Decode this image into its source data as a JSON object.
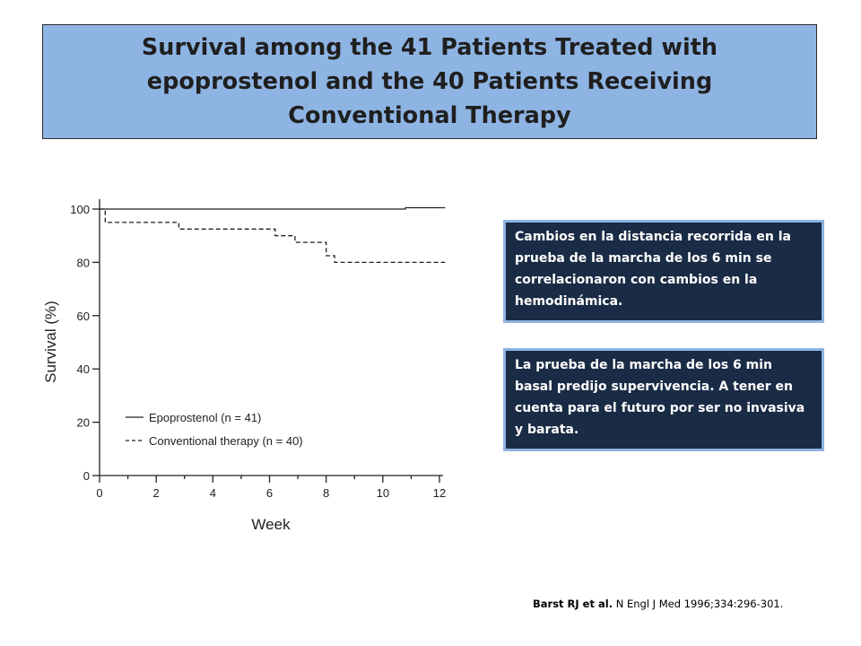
{
  "title": "Survival among the 41 Patients Treated with epoprostenol and the 40 Patients Receiving Conventional Therapy",
  "notes": [
    "Cambios en la distancia recorrida en la prueba de la marcha de los 6 min se correlacionaron con cambios en la hemodinámica.",
    "La prueba de la marcha de los 6 min basal predijo supervivencia. A tener en cuenta para el futuro por ser no invasiva y barata."
  ],
  "citation": {
    "authors": "Barst RJ et al.",
    "journal": "N Engl J Med 1996;334:296-301."
  },
  "chart_data": {
    "type": "line",
    "xlabel": "Week",
    "ylabel": "Survival (%)",
    "xlim": [
      0,
      12
    ],
    "ylim": [
      0,
      100
    ],
    "x_ticks": [
      "0",
      "2",
      "4",
      "6",
      "8",
      "10",
      "12"
    ],
    "y_ticks": [
      "0",
      "20",
      "40",
      "60",
      "80",
      "100"
    ],
    "x_tick_values": [
      0,
      2,
      4,
      6,
      8,
      10,
      12
    ],
    "y_tick_values": [
      0,
      20,
      40,
      60,
      80,
      100
    ],
    "legend_position": "bottom-left",
    "series": [
      {
        "name": "Epoprostenol (n = 41)",
        "style": "solid",
        "points": [
          [
            0,
            100
          ],
          [
            10.8,
            100
          ],
          [
            10.8,
            100.5
          ],
          [
            12.2,
            100.5
          ]
        ]
      },
      {
        "name": "Conventional therapy (n = 40)",
        "style": "dashed",
        "points": [
          [
            0,
            100
          ],
          [
            0.2,
            100
          ],
          [
            0.2,
            95
          ],
          [
            2.8,
            95
          ],
          [
            2.8,
            92.5
          ],
          [
            6.2,
            92.5
          ],
          [
            6.2,
            90
          ],
          [
            6.9,
            90
          ],
          [
            6.9,
            87.5
          ],
          [
            8.0,
            87.5
          ],
          [
            8.0,
            82.5
          ],
          [
            8.3,
            82.5
          ],
          [
            8.3,
            80
          ],
          [
            12.2,
            80
          ]
        ]
      }
    ]
  }
}
